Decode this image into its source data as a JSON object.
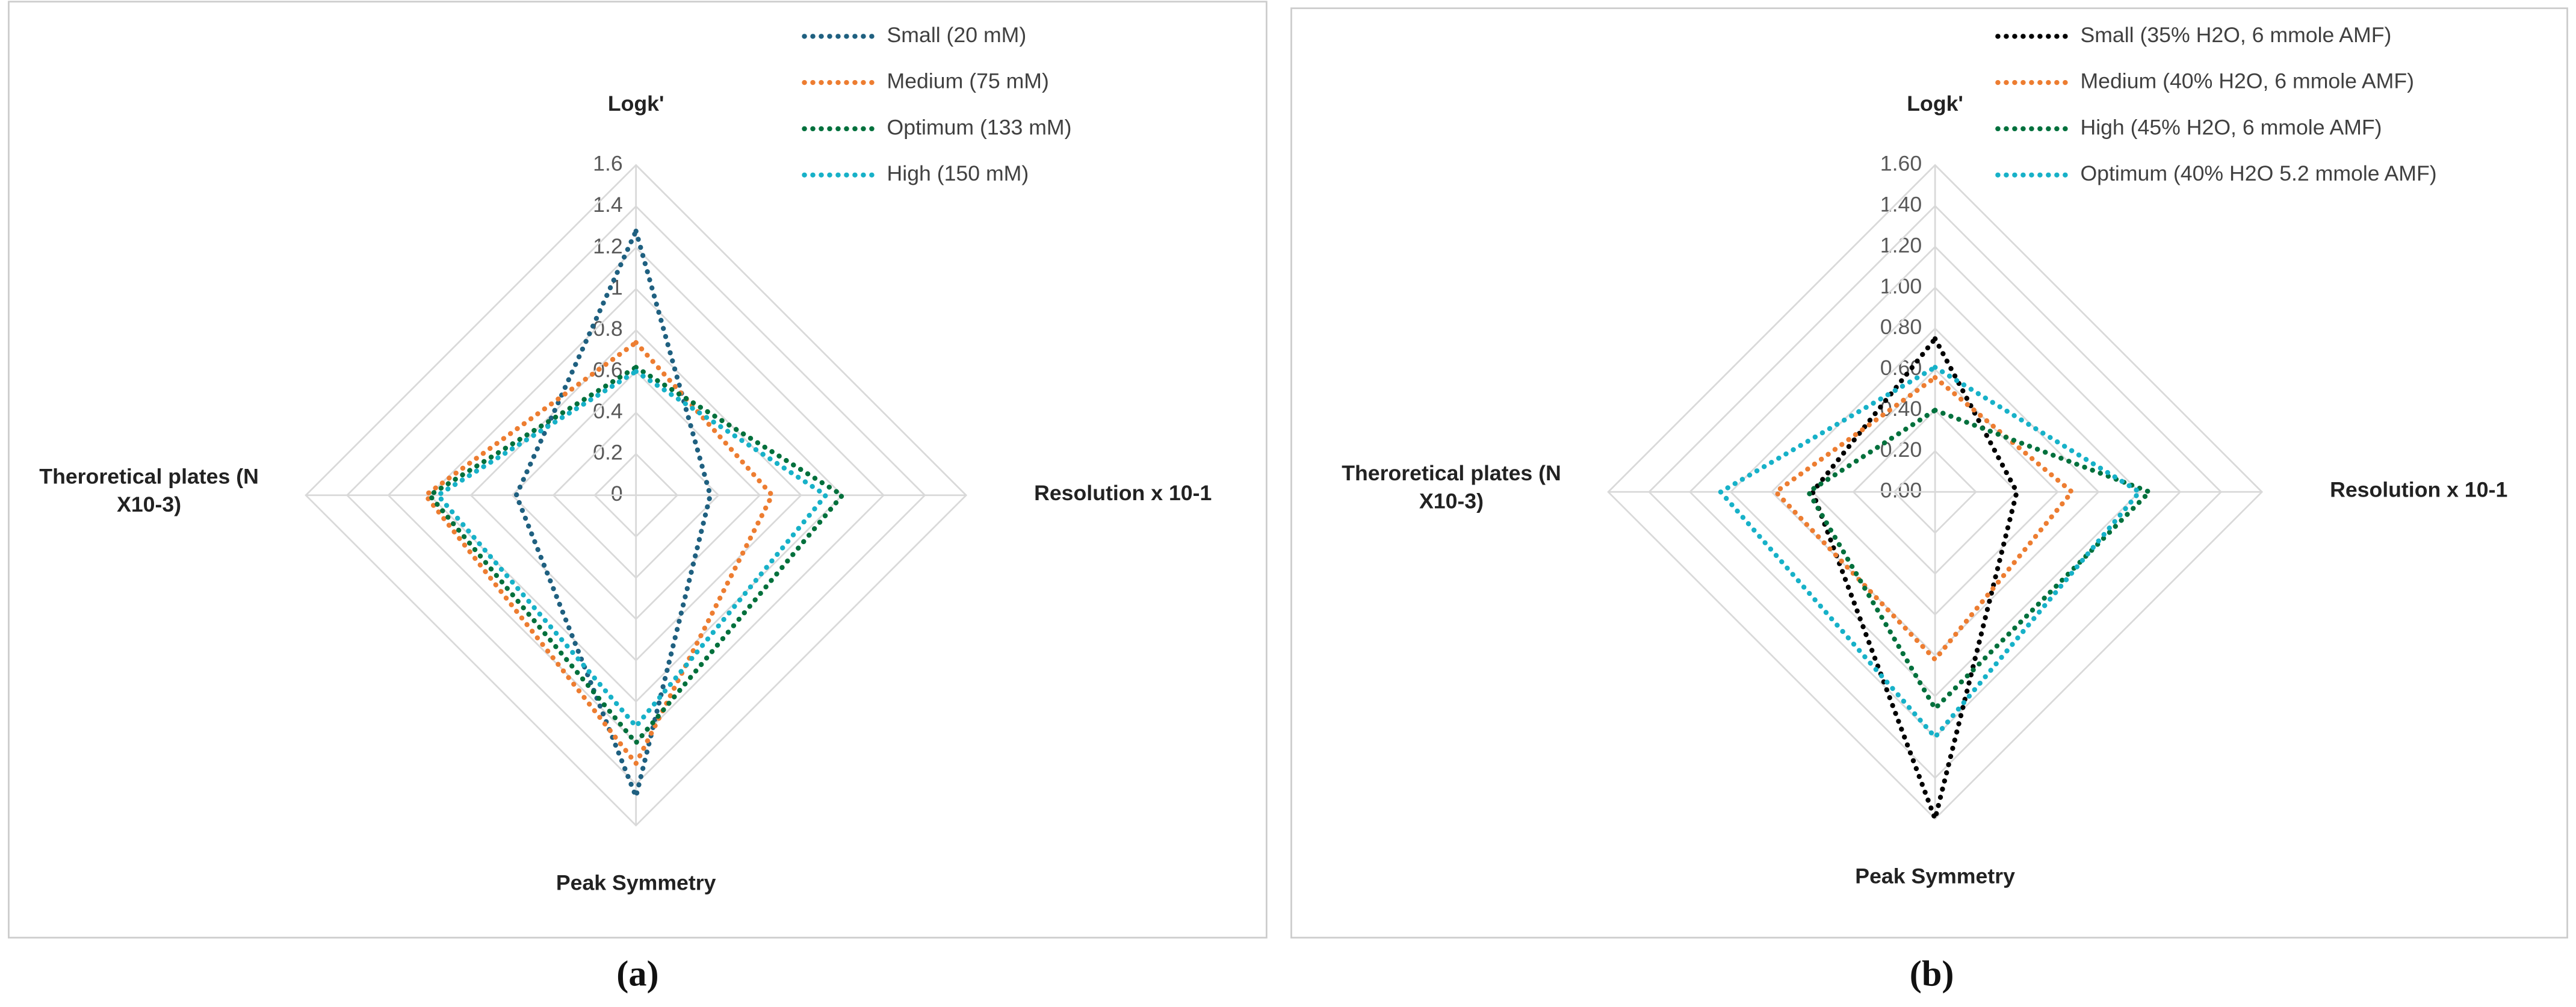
{
  "chart_data": [
    {
      "type": "radar",
      "panel_label": "(a)",
      "categories": [
        "Logk'",
        "Resolution x 10-1",
        "Peak Symmetry",
        "Theroretical plates (N X10-3)"
      ],
      "ylim": [
        0,
        1.6
      ],
      "yticks": [
        0,
        0.2,
        0.4,
        0.6,
        0.8,
        1,
        1.2,
        1.4,
        1.6
      ],
      "grid": true,
      "legend": "top-right",
      "series": [
        {
          "name": "Small (20 mM)",
          "color": "#1f6080",
          "values": [
            1.28,
            0.36,
            1.46,
            0.58
          ]
        },
        {
          "name": "Medium (75 mM)",
          "color": "#ed7d31",
          "values": [
            0.74,
            0.66,
            1.3,
            1.02
          ]
        },
        {
          "name": "Optimum (133 mM)",
          "color": "#00703c",
          "values": [
            0.62,
            1.0,
            1.2,
            1.0
          ]
        },
        {
          "name": "High (150 mM)",
          "color": "#17b1c8",
          "values": [
            0.6,
            0.92,
            1.12,
            0.96
          ]
        }
      ]
    },
    {
      "type": "radar",
      "panel_label": "(b)",
      "categories": [
        "Logk'",
        "Resolution x 10-1",
        "Peak Symmetry",
        "Theroretical plates (N X10-3)"
      ],
      "ylim": [
        0,
        1.6
      ],
      "yticks": [
        {
          "value": 0,
          "label": "0.00"
        },
        {
          "value": 0.2,
          "label": "0.20"
        },
        {
          "value": 0.4,
          "label": "0.40"
        },
        {
          "value": 0.6,
          "label": "0.60"
        },
        {
          "value": 0.8,
          "label": "0.80"
        },
        {
          "value": 1,
          "label": "1.00"
        },
        {
          "value": 1.2,
          "label": "1.20"
        },
        {
          "value": 1.4,
          "label": "1.40"
        },
        {
          "value": 1.6,
          "label": "1.60"
        }
      ],
      "grid": true,
      "legend": "top-right",
      "series": [
        {
          "name": "Small (35% H2O, 6 mmole AMF)",
          "color": "#000000",
          "values": [
            0.75,
            0.4,
            1.6,
            0.6
          ]
        },
        {
          "name": "Medium (40% H2O, 6 mmole AMF)",
          "color": "#ed7d31",
          "values": [
            0.56,
            0.67,
            0.82,
            0.78
          ]
        },
        {
          "name": "High (45% H2O, 6 mmole AMF)",
          "color": "#00703c",
          "values": [
            0.4,
            1.05,
            1.06,
            0.62
          ]
        },
        {
          "name": "Optimum (40% H2O 5.2 mmole AMF)",
          "color": "#17b1c8",
          "values": [
            0.61,
            1.0,
            1.2,
            1.05
          ]
        }
      ]
    }
  ]
}
